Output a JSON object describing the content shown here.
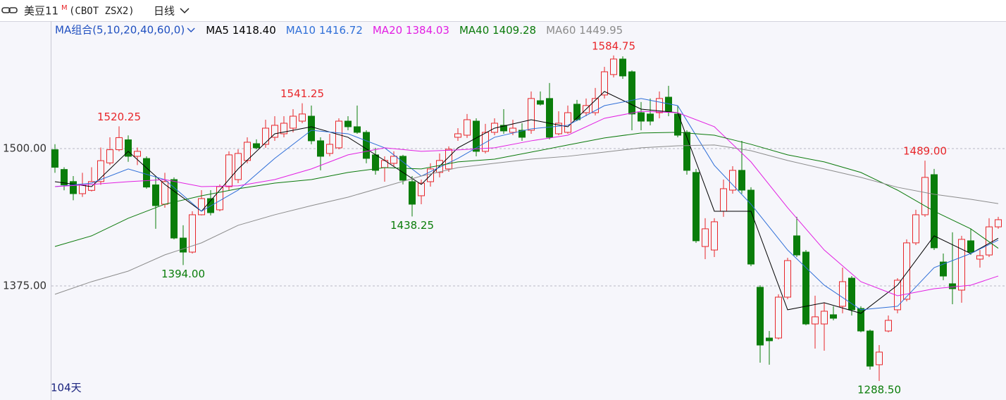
{
  "chart_data": {
    "type": "candlestick",
    "title": "美豆11",
    "title_mark": "M",
    "symbol": "(CBOT ZSX2)",
    "period": "日线",
    "ma_group": "MA组合(5,10,20,40,60,0)",
    "days_label": "104天",
    "up_color": "#e8262a",
    "down_color": "#0a7d0a",
    "ylim": [
      1271.2,
      1617.3
    ],
    "yticks": [
      {
        "value": 1375,
        "label": "1375.00"
      },
      {
        "value": 1500,
        "label": "1500.00"
      }
    ],
    "grid": true,
    "candles": {
      "open": [
        1499,
        1481,
        1470,
        1459,
        1462,
        1470,
        1487,
        1499,
        1508,
        1493,
        1491,
        1467,
        1449.4,
        1471.8,
        1418.6,
        1405.8,
        1439.8,
        1454.5,
        1444.3,
        1465.4,
        1471.8,
        1489.2,
        1504.5,
        1503.9,
        1510.3,
        1513.5,
        1518.6,
        1525,
        1529.5,
        1507.1,
        1495.6,
        1500.7,
        1525,
        1519.9,
        1514.8,
        1494.3,
        1482.7,
        1486.6,
        1493,
        1469.9,
        1457.1,
        1469.9,
        1478.3,
        1481.5,
        1510.3,
        1512.2,
        1525,
        1497.5,
        1514.8,
        1521.2,
        1514.8,
        1516.7,
        1516.7,
        1543.6,
        1545.6,
        1513.5,
        1514.8,
        1540.4,
        1532.7,
        1532.7,
        1548.8,
        1567.4,
        1581.5,
        1569.9,
        1532.7,
        1531.5,
        1532.7,
        1546.8,
        1531.5,
        1514.8,
        1478.3,
        1410.9,
        1407.7,
        1443,
        1462.2,
        1480.2,
        1462.2,
        1373.8,
        1327.6,
        1327.6,
        1364.8,
        1420.6,
        1405.8,
        1340.4,
        1340.4,
        1348.8,
        1356.5,
        1382.1,
        1354.5,
        1334,
        1303.3,
        1334,
        1353.3,
        1362.9,
        1414.2,
        1439.8,
        1476.3,
        1396.8,
        1377,
        1371.2,
        1416.1,
        1399.4,
        1403.2,
        1428.8
      ],
      "high": [
        1504,
        1483,
        1475,
        1478,
        1483,
        1501,
        1510.3,
        1520.25,
        1512,
        1501,
        1493,
        1475,
        1478,
        1473.8,
        1430.2,
        1443,
        1462.2,
        1462.2,
        1467.4,
        1497.5,
        1499.4,
        1510.3,
        1508.4,
        1526.3,
        1529.5,
        1529.5,
        1535.9,
        1541.25,
        1539.2,
        1510.3,
        1513.5,
        1527.6,
        1529.5,
        1539.2,
        1516.7,
        1500.7,
        1493,
        1497.5,
        1494.3,
        1475,
        1471.8,
        1486.6,
        1495.6,
        1502,
        1518.6,
        1531.5,
        1527.6,
        1522.5,
        1527.6,
        1535.9,
        1526.3,
        1523.1,
        1552,
        1552,
        1559.7,
        1534,
        1539.2,
        1544.3,
        1545.6,
        1555.2,
        1574.4,
        1584.75,
        1584,
        1571.2,
        1542.4,
        1545.6,
        1552,
        1557.1,
        1539.2,
        1516.7,
        1481.5,
        1436.6,
        1436.6,
        1471.8,
        1484,
        1507.1,
        1464.8,
        1375.7,
        1334,
        1367.4,
        1400.7,
        1437.9,
        1407.7,
        1366.1,
        1359.7,
        1356.5,
        1391.7,
        1384,
        1356.5,
        1335.3,
        1321.2,
        1348.1,
        1382.1,
        1417.4,
        1444.3,
        1489,
        1481.5,
        1404.5,
        1423.8,
        1420.6,
        1427,
        1407.7,
        1436.6,
        1437.9
      ],
      "low": [
        1478,
        1462,
        1453,
        1456,
        1461,
        1467,
        1485,
        1497.5,
        1488,
        1485,
        1463.5,
        1427,
        1446.2,
        1417.4,
        1394,
        1404.5,
        1439.2,
        1439.2,
        1443,
        1462.2,
        1468.6,
        1486.6,
        1499.4,
        1500.7,
        1507.1,
        1510.3,
        1514.8,
        1523.1,
        1503.9,
        1480.2,
        1493,
        1499.4,
        1516.7,
        1513.5,
        1486.6,
        1476.3,
        1469.9,
        1484,
        1467.4,
        1438.25,
        1449.4,
        1465.4,
        1473.8,
        1478.9,
        1507.1,
        1509.7,
        1493,
        1495.6,
        1512.2,
        1513.5,
        1512.2,
        1507.1,
        1513.5,
        1539.2,
        1508.4,
        1512.2,
        1513.5,
        1525,
        1529.5,
        1530.2,
        1545.6,
        1564.8,
        1563.5,
        1516.7,
        1516.7,
        1521.2,
        1527.6,
        1529.5,
        1510.3,
        1476.3,
        1414.2,
        1399.4,
        1401.3,
        1437.9,
        1459,
        1459,
        1393,
        1305.2,
        1303.3,
        1326.3,
        1362.9,
        1401.3,
        1339.2,
        1318,
        1316.1,
        1343.7,
        1350.1,
        1348.1,
        1332.8,
        1298.8,
        1288.5,
        1332.8,
        1350.1,
        1361,
        1412.2,
        1437.9,
        1407.7,
        1380.2,
        1358.4,
        1359.7,
        1403.2,
        1391.7,
        1401.3,
        1427
      ],
      "close": [
        1483,
        1467,
        1459,
        1467,
        1470,
        1489,
        1499,
        1510,
        1493,
        1497.5,
        1465,
        1448.1,
        1470,
        1418.6,
        1405.8,
        1439.8,
        1454.5,
        1441.7,
        1465.4,
        1494.3,
        1495.6,
        1505.8,
        1500.7,
        1518.6,
        1521.2,
        1523.1,
        1529.5,
        1531.5,
        1507.1,
        1493,
        1503.9,
        1525,
        1519.9,
        1514.8,
        1491.1,
        1480.2,
        1489.2,
        1493,
        1471.2,
        1449.4,
        1468.6,
        1481.5,
        1489.2,
        1499.4,
        1513.5,
        1526.3,
        1497.5,
        1514.8,
        1523.1,
        1516.1,
        1518.6,
        1510.3,
        1545.6,
        1540.4,
        1510.3,
        1523.1,
        1532.7,
        1526.3,
        1539.2,
        1545.6,
        1569.9,
        1581.5,
        1566.1,
        1531.5,
        1525,
        1525,
        1545.6,
        1534,
        1512.2,
        1480.2,
        1416.1,
        1427,
        1433.4,
        1463.5,
        1480.2,
        1462.2,
        1394.9,
        1321.2,
        1325.1,
        1364.8,
        1398.1,
        1403.2,
        1340.4,
        1346.9,
        1352,
        1345.6,
        1378.9,
        1353.3,
        1334,
        1302,
        1314.8,
        1343.7,
        1380.2,
        1414.2,
        1439.8,
        1473.8,
        1409.7,
        1384,
        1372.5,
        1417.4,
        1405.8,
        1402.6,
        1428.8,
        1435.3
      ]
    },
    "annotations": [
      {
        "index": 7,
        "value": 1520.25,
        "kind": "high"
      },
      {
        "index": 14,
        "value": 1394,
        "label": "1394.00",
        "kind": "low"
      },
      {
        "index": 27,
        "value": 1541.25,
        "kind": "high"
      },
      {
        "index": 39,
        "value": 1438.25,
        "kind": "low"
      },
      {
        "index": 61,
        "value": 1584.75,
        "kind": "high"
      },
      {
        "index": 90,
        "value": 1288.5,
        "label": "1288.50",
        "kind": "low"
      },
      {
        "index": 95,
        "value": 1489,
        "label": "1489.00",
        "kind": "high"
      }
    ],
    "moving_averages": {
      "x": [
        0,
        4,
        8,
        12,
        16,
        20,
        24,
        28,
        32,
        36,
        40,
        44,
        48,
        52,
        56,
        60,
        64,
        68,
        72,
        76,
        80,
        84,
        88,
        92,
        96,
        100,
        103
      ],
      "lines": [
        {
          "name": "MA5",
          "color": "#000000",
          "legend_value": {
            "value": 1418.4,
            "label": "1418.40"
          },
          "values": [
            1469.9,
            1465.4,
            1497.5,
            1467.4,
            1443,
            1481.5,
            1513.5,
            1519.9,
            1510.3,
            1489.2,
            1467.4,
            1500.7,
            1518.6,
            1526.3,
            1519.9,
            1552,
            1535.9,
            1532.7,
            1443,
            1443,
            1353.3,
            1359.7,
            1350.1,
            1375.7,
            1420.6,
            1404.5,
            1418.4
          ]
        },
        {
          "name": "MA10",
          "color": "#2f6fd8",
          "legend_value": {
            "value": 1416.72,
            "label": "1416.72"
          },
          "values": [
            1465.4,
            1468.6,
            1481.5,
            1471.8,
            1443,
            1462.2,
            1491.1,
            1516.7,
            1513.5,
            1500.7,
            1475,
            1491.1,
            1510.3,
            1518,
            1521.2,
            1539.1,
            1545.6,
            1539.1,
            1484.7,
            1449.4,
            1407.7,
            1375.7,
            1353.3,
            1356.5,
            1391.7,
            1404.5,
            1416.72
          ]
        },
        {
          "name": "MA20",
          "color": "#e21fe2",
          "legend_value": {
            "value": 1384.03,
            "label": "1384.03"
          },
          "values": [
            1465.4,
            1467.4,
            1469.9,
            1471.8,
            1465.4,
            1466.1,
            1471.8,
            1481.5,
            1494.3,
            1500.7,
            1497.5,
            1498.8,
            1500.7,
            1507.1,
            1512.2,
            1527.6,
            1534,
            1532.7,
            1519.9,
            1487.9,
            1446.2,
            1407.7,
            1378.9,
            1366.1,
            1372.5,
            1375.7,
            1384.03
          ]
        },
        {
          "name": "MA40",
          "color": "#0b7a0b",
          "legend_value": {
            "value": 1409.28,
            "label": "1409.28"
          },
          "values": [
            1410.9,
            1420.6,
            1436.6,
            1449.4,
            1457.1,
            1463.5,
            1468.6,
            1471.8,
            1478.3,
            1482.7,
            1481.5,
            1487.9,
            1490.4,
            1496.8,
            1503.3,
            1509.7,
            1514.2,
            1514.8,
            1512.2,
            1503.9,
            1494.3,
            1487.9,
            1478.3,
            1462.2,
            1443,
            1427,
            1409.28
          ]
        },
        {
          "name": "MA60",
          "color": "#8c8c8c",
          "legend_value": {
            "value": 1449.95,
            "label": "1449.95"
          },
          "values": [
            1367.4,
            1378.9,
            1388.5,
            1403.3,
            1414.2,
            1430.2,
            1439.8,
            1448.1,
            1455.8,
            1465.4,
            1475,
            1482.7,
            1486.6,
            1490.4,
            1493,
            1496.8,
            1500.7,
            1502.6,
            1503.3,
            1498.1,
            1489.2,
            1481.5,
            1473.8,
            1464.8,
            1458.4,
            1453.9,
            1449.95
          ]
        }
      ]
    }
  }
}
